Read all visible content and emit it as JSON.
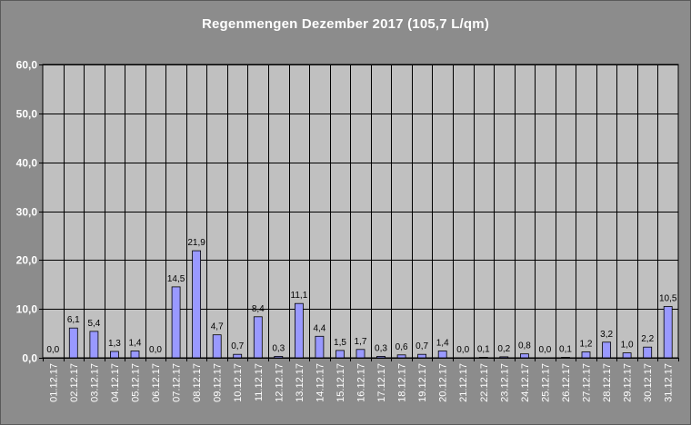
{
  "title": "Regenmengen Dezember 2017 (105,7 L/qm)",
  "chart_data": {
    "type": "bar",
    "title": "Regenmengen Dezember 2017 (105,7 L/qm)",
    "xlabel": "",
    "ylabel": "",
    "ylim": [
      0,
      60
    ],
    "yticks": [
      0,
      10,
      20,
      30,
      40,
      50,
      60
    ],
    "ytick_labels": [
      "0,0",
      "10,0",
      "20,0",
      "30,0",
      "40,0",
      "50,0",
      "60,0"
    ],
    "grid": true,
    "legend": "none",
    "colors": {
      "bar": "#9999ff",
      "plot_bg": "#c0c0c0",
      "frame_bg": "#8c8c8c"
    },
    "categories": [
      "01.12.17",
      "02.12.17",
      "03.12.17",
      "04.12.17",
      "05.12.17",
      "06.12.17",
      "07.12.17",
      "08.12.17",
      "09.12.17",
      "10.12.17",
      "11.12.17",
      "12.12.17",
      "13.12.17",
      "14.12.17",
      "15.12.17",
      "16.12.17",
      "17.12.17",
      "18.12.17",
      "19.12.17",
      "20.12.17",
      "21.12.17",
      "22.12.17",
      "23.12.17",
      "24.12.17",
      "25.12.17",
      "26.12.17",
      "27.12.17",
      "28.12.17",
      "29.12.17",
      "30.12.17",
      "31.12.17"
    ],
    "values": [
      0.0,
      6.1,
      5.4,
      1.3,
      1.4,
      0.0,
      14.5,
      21.9,
      4.7,
      0.7,
      8.4,
      0.3,
      11.1,
      4.4,
      1.5,
      1.7,
      0.3,
      0.6,
      0.7,
      1.4,
      0.0,
      0.1,
      0.2,
      0.8,
      0.0,
      0.1,
      1.2,
      3.2,
      1.0,
      2.2,
      10.5
    ],
    "value_labels": [
      "0,0",
      "6,1",
      "5,4",
      "1,3",
      "1,4",
      "0,0",
      "14,5",
      "21,9",
      "4,7",
      "0,7",
      "8,4",
      "0,3",
      "11,1",
      "4,4",
      "1,5",
      "1,7",
      "0,3",
      "0,6",
      "0,7",
      "1,4",
      "0,0",
      "0,1",
      "0,2",
      "0,8",
      "0,0",
      "0,1",
      "1,2",
      "3,2",
      "1,0",
      "2,2",
      "10,5"
    ]
  }
}
